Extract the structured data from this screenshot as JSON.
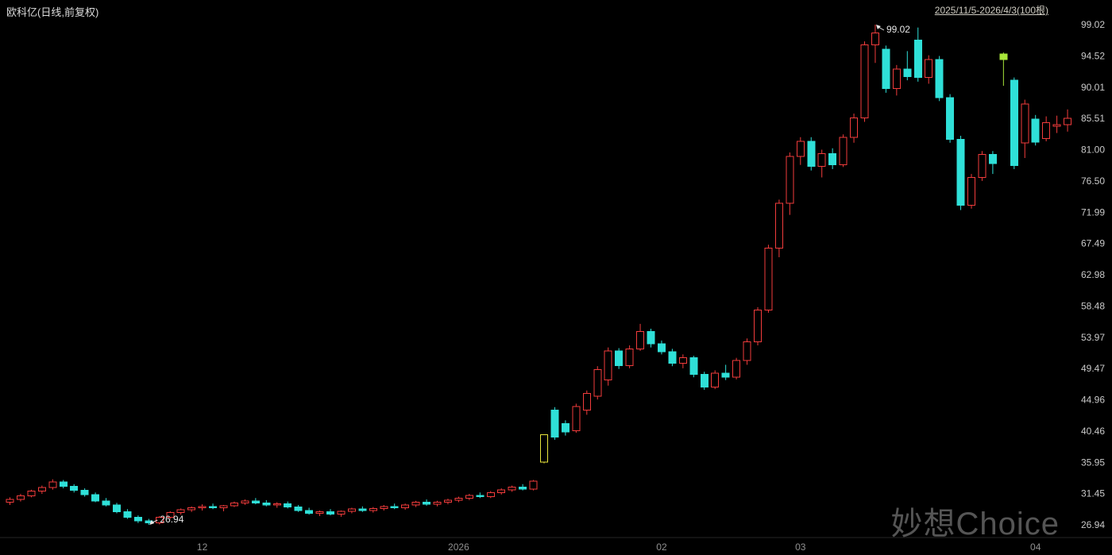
{
  "header": {
    "title": "欧科亿(日线,前复权)",
    "range_label": "2025/11/5-2026/4/3(100根)"
  },
  "watermark": "妙想Choice",
  "chart_data": {
    "type": "candlestick",
    "title": "欧科亿(日线,前复权)",
    "instrument": "欧科亿",
    "period": "日线",
    "adjustment": "前复权",
    "bar_count": 100,
    "date_range": "2025/11/5-2026/4/3",
    "legend_position": "none",
    "grid": false,
    "colors": {
      "background": "#000000",
      "up": "#f23c3c",
      "down": "#2fe0d8",
      "y_axis_text": "#c9c9c9",
      "x_axis_text": "#909090",
      "annotation_text": "#e6e6e6",
      "axis_line": "#262626",
      "watermark": "#555555"
    },
    "y_axis": {
      "max": 99.02,
      "min": 26.94,
      "ticks": [
        "99.02",
        "94.52",
        "90.01",
        "85.51",
        "81.00",
        "76.50",
        "71.99",
        "67.49",
        "62.98",
        "58.48",
        "53.97",
        "49.47",
        "44.96",
        "40.46",
        "35.95",
        "31.45",
        "26.94"
      ]
    },
    "x_ticks": [
      {
        "label": "12",
        "index": 18
      },
      {
        "label": "2026",
        "index": 42
      },
      {
        "label": "02",
        "index": 61
      },
      {
        "label": "03",
        "index": 74
      },
      {
        "label": "04",
        "index": 96
      }
    ],
    "annotations": [
      {
        "text": "99.02",
        "index": 81,
        "at": "high"
      },
      {
        "text": "26.94",
        "index": 13,
        "at": "low"
      }
    ],
    "highlights": [
      {
        "index": 50,
        "color": "#e9e53c",
        "style": "hollow"
      },
      {
        "index": 93,
        "color": "#a8e63a",
        "style": "solid"
      }
    ],
    "candles": [
      [
        30.2,
        30.9,
        29.8,
        30.6
      ],
      [
        30.6,
        31.4,
        30.3,
        31.1
      ],
      [
        31.1,
        32.0,
        30.9,
        31.8
      ],
      [
        31.8,
        32.6,
        31.4,
        32.3
      ],
      [
        32.3,
        33.5,
        32.0,
        33.1
      ],
      [
        33.1,
        33.4,
        32.2,
        32.5
      ],
      [
        32.5,
        32.8,
        31.6,
        31.9
      ],
      [
        31.9,
        32.2,
        31.0,
        31.3
      ],
      [
        31.3,
        31.6,
        30.2,
        30.4
      ],
      [
        30.4,
        30.8,
        29.6,
        29.8
      ],
      [
        29.8,
        30.1,
        28.6,
        28.8
      ],
      [
        28.8,
        29.2,
        27.8,
        28.0
      ],
      [
        28.0,
        28.3,
        27.2,
        27.5
      ],
      [
        27.5,
        27.8,
        26.94,
        27.2
      ],
      [
        27.2,
        28.2,
        27.0,
        28.0
      ],
      [
        28.0,
        28.9,
        27.8,
        28.7
      ],
      [
        28.7,
        29.3,
        28.4,
        29.1
      ],
      [
        29.1,
        29.6,
        28.8,
        29.4
      ],
      [
        29.4,
        29.9,
        29.0,
        29.6
      ],
      [
        29.6,
        30.0,
        29.2,
        29.4
      ],
      [
        29.4,
        29.8,
        28.9,
        29.7
      ],
      [
        29.7,
        30.3,
        29.5,
        30.1
      ],
      [
        30.1,
        30.6,
        29.8,
        30.4
      ],
      [
        30.4,
        30.8,
        29.9,
        30.1
      ],
      [
        30.1,
        30.5,
        29.6,
        29.8
      ],
      [
        29.8,
        30.2,
        29.4,
        30.0
      ],
      [
        30.0,
        30.3,
        29.3,
        29.5
      ],
      [
        29.5,
        29.8,
        28.8,
        29.0
      ],
      [
        29.0,
        29.4,
        28.4,
        28.6
      ],
      [
        28.6,
        29.0,
        28.2,
        28.8
      ],
      [
        28.8,
        29.2,
        28.3,
        28.5
      ],
      [
        28.5,
        29.0,
        28.1,
        28.9
      ],
      [
        28.9,
        29.4,
        28.6,
        29.2
      ],
      [
        29.2,
        29.6,
        28.8,
        29.0
      ],
      [
        29.0,
        29.5,
        28.7,
        29.3
      ],
      [
        29.3,
        29.8,
        29.0,
        29.6
      ],
      [
        29.6,
        30.0,
        29.2,
        29.4
      ],
      [
        29.4,
        30.0,
        29.1,
        29.8
      ],
      [
        29.8,
        30.4,
        29.5,
        30.2
      ],
      [
        30.2,
        30.6,
        29.7,
        29.9
      ],
      [
        29.9,
        30.4,
        29.6,
        30.2
      ],
      [
        30.2,
        30.7,
        29.9,
        30.5
      ],
      [
        30.5,
        31.0,
        30.2,
        30.8
      ],
      [
        30.8,
        31.4,
        30.5,
        31.2
      ],
      [
        31.2,
        31.6,
        30.8,
        31.0
      ],
      [
        31.0,
        31.8,
        30.8,
        31.6
      ],
      [
        31.6,
        32.2,
        31.3,
        32.0
      ],
      [
        32.0,
        32.6,
        31.7,
        32.4
      ],
      [
        32.4,
        32.8,
        31.9,
        32.1
      ],
      [
        32.1,
        33.4,
        31.9,
        33.25
      ],
      [
        36.0,
        39.9,
        35.8,
        39.9
      ],
      [
        43.5,
        43.9,
        39.2,
        39.6
      ],
      [
        41.5,
        42.0,
        39.8,
        40.3
      ],
      [
        40.5,
        44.4,
        40.2,
        44.0
      ],
      [
        43.5,
        46.3,
        42.8,
        45.9
      ],
      [
        45.5,
        49.8,
        45.0,
        49.3
      ],
      [
        47.8,
        52.5,
        47.0,
        52.0
      ],
      [
        52.0,
        52.4,
        49.4,
        49.9
      ],
      [
        49.9,
        52.8,
        49.5,
        52.3
      ],
      [
        52.3,
        55.9,
        52.0,
        54.8
      ],
      [
        54.8,
        55.2,
        52.5,
        53.0
      ],
      [
        53.0,
        53.5,
        51.5,
        51.9
      ],
      [
        51.9,
        52.3,
        49.8,
        50.2
      ],
      [
        50.2,
        51.5,
        49.5,
        51.0
      ],
      [
        51.0,
        51.3,
        48.2,
        48.6
      ],
      [
        48.6,
        49.0,
        46.4,
        46.8
      ],
      [
        46.8,
        49.2,
        46.5,
        48.8
      ],
      [
        48.8,
        50.0,
        47.8,
        48.2
      ],
      [
        48.2,
        51.0,
        47.9,
        50.6
      ],
      [
        50.6,
        53.8,
        50.0,
        53.3
      ],
      [
        53.3,
        58.3,
        52.8,
        57.9
      ],
      [
        57.9,
        67.3,
        57.5,
        66.8
      ],
      [
        66.8,
        73.8,
        65.5,
        73.3
      ],
      [
        73.3,
        80.6,
        71.6,
        80.0
      ],
      [
        80.0,
        82.8,
        78.8,
        82.2
      ],
      [
        82.2,
        82.8,
        78.0,
        78.6
      ],
      [
        78.6,
        81.0,
        77.0,
        80.4
      ],
      [
        80.4,
        81.2,
        78.2,
        78.8
      ],
      [
        78.8,
        83.2,
        78.5,
        82.8
      ],
      [
        82.8,
        86.2,
        82.0,
        85.6
      ],
      [
        85.6,
        96.6,
        85.0,
        96.1
      ],
      [
        96.1,
        99.02,
        93.5,
        97.8
      ],
      [
        95.5,
        96.0,
        89.2,
        89.8
      ],
      [
        89.8,
        93.2,
        88.8,
        92.6
      ],
      [
        92.6,
        95.2,
        91.0,
        91.5
      ],
      [
        96.8,
        98.6,
        90.8,
        91.4
      ],
      [
        91.4,
        94.6,
        90.5,
        94.0
      ],
      [
        94.0,
        94.5,
        88.0,
        88.5
      ],
      [
        88.5,
        89.0,
        82.0,
        82.5
      ],
      [
        82.5,
        83.0,
        72.3,
        73.0
      ],
      [
        73.0,
        77.5,
        72.5,
        77.0
      ],
      [
        77.0,
        80.8,
        76.5,
        80.3
      ],
      [
        80.3,
        80.8,
        77.5,
        79.0
      ],
      [
        94.0,
        95.0,
        90.2,
        94.8
      ],
      [
        91.0,
        91.4,
        78.2,
        78.7
      ],
      [
        82.0,
        88.2,
        79.8,
        87.6
      ],
      [
        85.4,
        86.0,
        81.6,
        82.1
      ],
      [
        82.6,
        85.8,
        82.2,
        84.9
      ],
      [
        84.4,
        85.9,
        83.4,
        84.6
      ],
      [
        84.6,
        86.8,
        83.6,
        85.51
      ]
    ]
  }
}
